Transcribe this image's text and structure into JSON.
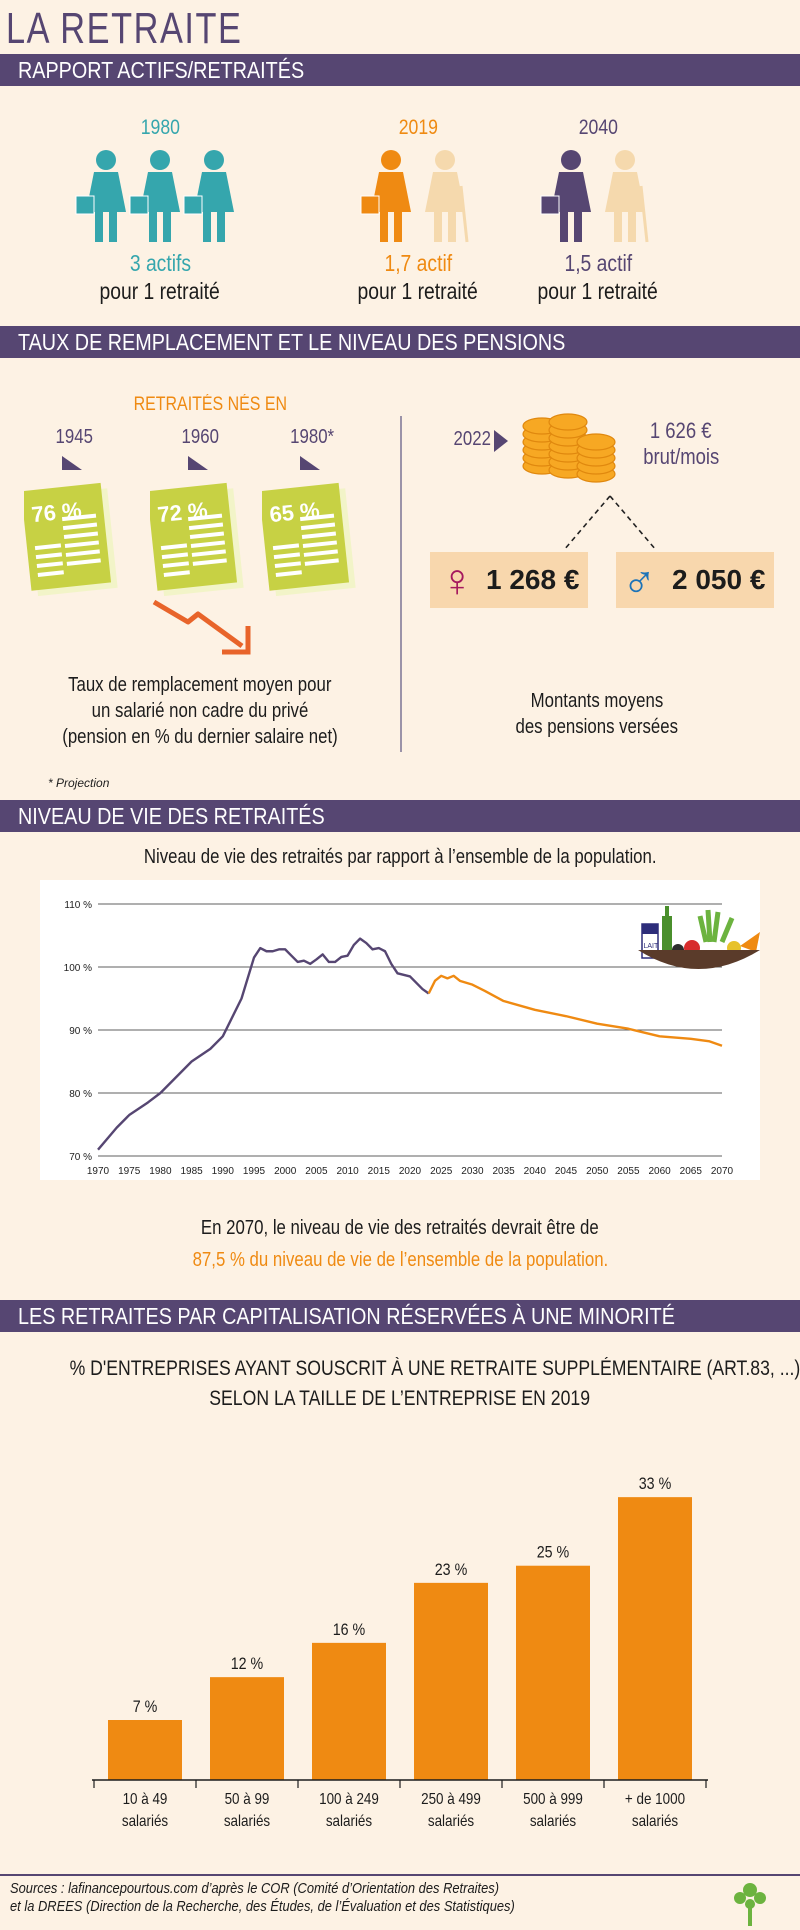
{
  "page_title": "LA RETRAITE",
  "colors": {
    "purple": "#564672",
    "orange": "#ef8a12",
    "teal": "#35a6ad",
    "lime": "#c7d144",
    "peach": "#f8d7ad",
    "background": "#fdf2e4"
  },
  "section1": {
    "title": "RAPPORT ACTIFS/RETRAITÉS",
    "items": [
      {
        "year": "1980",
        "ratio": "3 actifs",
        "label": "pour 1 retraité",
        "color": "#35a6ad"
      },
      {
        "year": "2019",
        "ratio": "1,7 actif",
        "label": "pour 1 retraité",
        "color": "#ef8a12"
      },
      {
        "year": "2040",
        "ratio": "1,5 actif",
        "label": "pour 1 retraité",
        "color": "#564672"
      }
    ]
  },
  "section2": {
    "title": "TAUX DE REMPLACEMENT ET LE NIVEAU DES PENSIONS",
    "left": {
      "heading": "RETRAITÉS NÉS EN",
      "cohorts": [
        {
          "year": "1945",
          "rate": "76 %"
        },
        {
          "year": "1960",
          "rate": "72 %"
        },
        {
          "year": "1980*",
          "rate": "65 %"
        }
      ],
      "caption": [
        "Taux de remplacement moyen pour",
        "un salarié non cadre du privé",
        "(pension en % du dernier salaire net)"
      ],
      "footnote": "* Projection"
    },
    "right": {
      "year": "2022",
      "amount": "1 626 €",
      "unit": "brut/mois",
      "female_amount": "1 268 €",
      "male_amount": "2 050 €",
      "caption": [
        "Montants moyens",
        "des pensions versées"
      ]
    }
  },
  "section3": {
    "title": "NIVEAU DE VIE DES RETRAITÉS",
    "subtitle": "Niveau de vie des retraités par rapport à l’ensemble de la population.",
    "basket_label": "LAIT",
    "conclusion_line1": "En 2070, le niveau de vie des retraités devrait être de",
    "conclusion_highlight": "87,5 %",
    "conclusion_rest": " du niveau de vie de l’ensemble de la population."
  },
  "section4": {
    "title": "LES RETRAITES PAR CAPITALISATION RÉSERVÉES À UNE MINORITÉ",
    "chart_title_line1": "% D'ENTREPRISES AYANT SOUSCRIT À UNE RETRAITE SUPPLÉMENTAIRE (ART.83, ...)",
    "chart_title_line2": "SELON LA TAILLE DE L’ENTREPRISE EN 2019"
  },
  "chart_data": [
    {
      "type": "line",
      "title": "Niveau de vie des retraités par rapport à l’ensemble de la population.",
      "ylim": [
        70,
        110
      ],
      "yticks": [
        "70 %",
        "80 %",
        "90 %",
        "100 %",
        "110 %"
      ],
      "ytick_values": [
        70,
        80,
        90,
        100,
        110
      ],
      "xticks": [
        "1970",
        "1975",
        "1980",
        "1985",
        "1990",
        "1995",
        "2000",
        "2005",
        "2010",
        "2015",
        "2020",
        "2025",
        "2030",
        "2035",
        "2040",
        "2045",
        "2050",
        "2055",
        "2060",
        "2065",
        "2070"
      ],
      "xlim": [
        1970,
        2070
      ],
      "grid": true,
      "series": [
        {
          "color": "#564672",
          "x": [
            1970,
            1973,
            1975,
            1978,
            1980,
            1983,
            1985,
            1988,
            1990,
            1993,
            1995,
            1996,
            1997,
            1998,
            1999,
            2000,
            2001,
            2002,
            2003,
            2004,
            2005,
            2006,
            2007,
            2008,
            2009,
            2010,
            2011,
            2012,
            2013,
            2014,
            2015,
            2016,
            2017,
            2018,
            2020,
            2022,
            2023
          ],
          "y": [
            71,
            74.5,
            76.5,
            78.5,
            80,
            83,
            85,
            87,
            89,
            95,
            101.5,
            103,
            102.5,
            102.5,
            102.8,
            102.8,
            101.8,
            100.8,
            101,
            100.5,
            101.2,
            102,
            100.8,
            100.8,
            101.6,
            101.8,
            103.5,
            104.5,
            103.8,
            102.8,
            103,
            102.5,
            100.5,
            99,
            98.5,
            96.5,
            95.8
          ]
        },
        {
          "color": "#ef8a12",
          "x": [
            2023,
            2024,
            2025,
            2026,
            2027,
            2028,
            2030,
            2032,
            2035,
            2040,
            2045,
            2050,
            2055,
            2060,
            2065,
            2068,
            2070
          ],
          "y": [
            95.8,
            97.8,
            98.6,
            98.2,
            98.6,
            97.8,
            97.2,
            96.2,
            94.6,
            93.2,
            92.2,
            91,
            90.2,
            89,
            88.6,
            88.2,
            87.5
          ]
        }
      ]
    },
    {
      "type": "bar",
      "title": "% D'ENTREPRISES AYANT SOUSCRIT À UNE RETRAITE SUPPLÉMENTAIRE (ART.83, ...) SELON LA TAILLE DE L’ENTREPRISE EN 2019",
      "categories": [
        [
          "10 à 49",
          "salariés"
        ],
        [
          "50 à 99",
          "salariés"
        ],
        [
          "100 à 249",
          "salariés"
        ],
        [
          "250 à 499",
          "salariés"
        ],
        [
          "500 à 999",
          "salariés"
        ],
        [
          "+ de 1000",
          "salariés"
        ]
      ],
      "values": [
        7,
        12,
        16,
        23,
        25,
        33
      ],
      "value_labels": [
        "7 %",
        "12 %",
        "16 %",
        "23 %",
        "25 %",
        "33 %"
      ],
      "color": "#ef8a12"
    }
  ],
  "footer": {
    "sources_line1": "Sources : lafinancepourtous.com d’après le COR (Comité d’Orientation des Retraites)",
    "sources_line2": "et la DREES (Direction de la Recherche, des Études, de l’Évaluation et des Statistiques)",
    "logo_icon": "tree-logo-icon"
  }
}
